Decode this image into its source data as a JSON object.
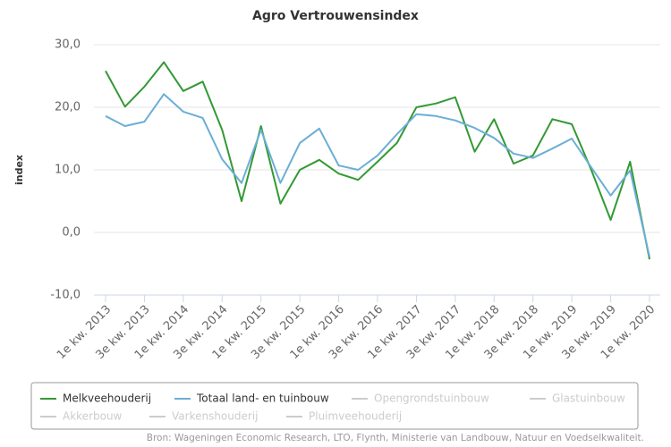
{
  "chart_data": {
    "type": "line",
    "title": "Agro Vertrouwensindex",
    "y_label": "index",
    "source": "Bron: Wageningen Economic Research, LTO, Flynth, Ministerie van Landbouw, Natuur en Voedselkwaliteit.",
    "categories": [
      "1e kw. 2013",
      null,
      "3e kw. 2013",
      null,
      "1e kw. 2014",
      null,
      "3e kw. 2014",
      null,
      "1e kw. 2015",
      null,
      "3e kw. 2015",
      null,
      "1e kw. 2016",
      null,
      "3e kw. 2016",
      null,
      "1e kw. 2017",
      null,
      "3e kw. 2017",
      null,
      "1e kw. 2018",
      null,
      "3e kw. 2018",
      null,
      "1e kw. 2019",
      null,
      "3e kw. 2019",
      null,
      "1e kw. 2020"
    ],
    "series": [
      {
        "name": "Melkveehouderij",
        "color": "#339933",
        "values": [
          25.8,
          20.1,
          23.3,
          27.2,
          22.6,
          24.1,
          16.4,
          5,
          17,
          4.6,
          10,
          11.6,
          9.4,
          8.4,
          11.3,
          14.3,
          20,
          20.6,
          21.6,
          12.9,
          18.1,
          11,
          12.3,
          18.1,
          17.3,
          10,
          2,
          11.3,
          -4.3
        ]
      },
      {
        "name": "Totaal land- en tuinbouw",
        "color": "#6baed6",
        "values": [
          18.6,
          17,
          17.7,
          22.1,
          19.3,
          18.3,
          11.7,
          7.9,
          16.4,
          7.9,
          14.3,
          16.6,
          10.7,
          10,
          12.3,
          15.7,
          18.9,
          18.6,
          17.9,
          16.7,
          15.1,
          12.6,
          11.9,
          13.4,
          15,
          10.4,
          5.9,
          9.9,
          -3.9
        ]
      },
      {
        "name": "Opengrondstuinbouw",
        "color": "#cccccc",
        "hidden": true
      },
      {
        "name": "Glastuinbouw",
        "color": "#cccccc",
        "hidden": true
      },
      {
        "name": "Akkerbouw",
        "color": "#cccccc",
        "hidden": true
      },
      {
        "name": "Varkenshouderij",
        "color": "#cccccc",
        "hidden": true
      },
      {
        "name": "Pluimveehouderij",
        "color": "#cccccc",
        "hidden": true
      }
    ],
    "ylim": [
      -10,
      30
    ],
    "yticks": [
      {
        "value": -10,
        "label": "-10,0"
      },
      {
        "value": 0,
        "label": "0,0"
      },
      {
        "value": 10,
        "label": "10,0"
      },
      {
        "value": 20,
        "label": "20,0"
      },
      {
        "value": 30,
        "label": "30,0"
      }
    ],
    "grid": true
  }
}
